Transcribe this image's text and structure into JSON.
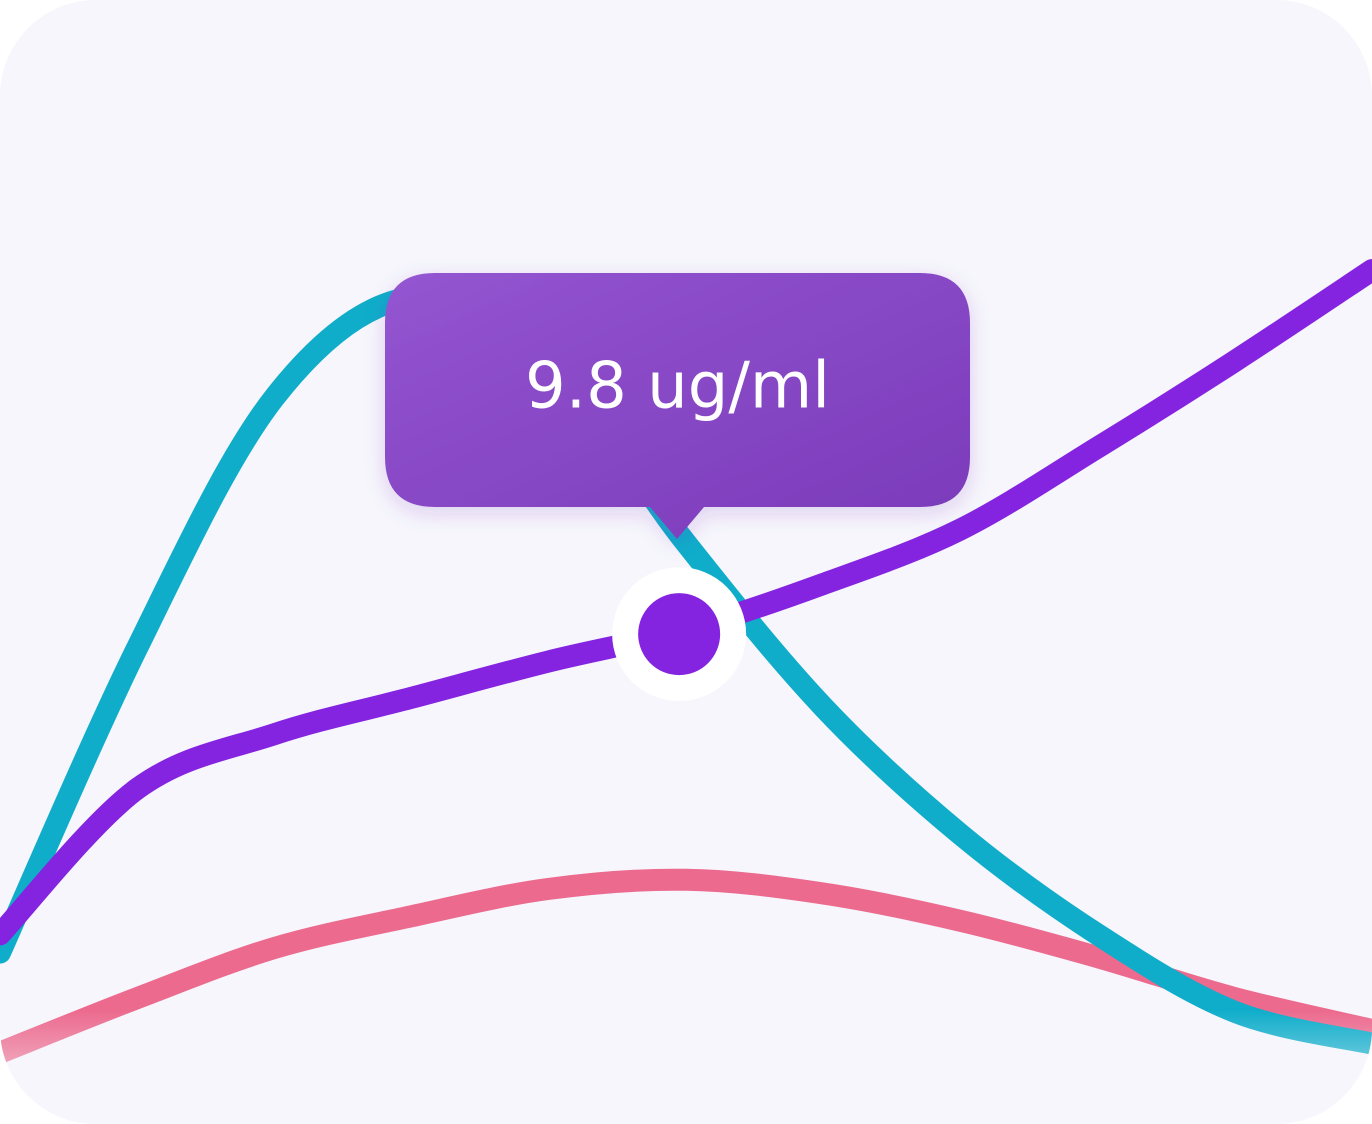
{
  "colors": {
    "background": "#f6f6fc",
    "teal_series": "#0fadca",
    "purple_series": "#8424e0",
    "pink_series": "#ec6a8e",
    "tooltip_start": "#9455d1",
    "tooltip_end": "#7a3ab9",
    "tooltip_text": "#ffffff",
    "marker_ring": "#ffffff"
  },
  "chart_data": {
    "type": "line",
    "grid": false,
    "legend": "none",
    "x": [
      0,
      1,
      2,
      3,
      4,
      5,
      6,
      7,
      8,
      9,
      10
    ],
    "xlim": [
      0,
      10
    ],
    "ylim": [
      0,
      20
    ],
    "series": [
      {
        "color": "#0fadca",
        "values": [
          2.8,
          9.5,
          15.0,
          17.2,
          15.8,
          11.8,
          8.2,
          5.4,
          3.2,
          1.5,
          0.8
        ]
      },
      {
        "color": "#8424e0",
        "values": [
          3.2,
          6.4,
          7.6,
          8.4,
          9.2,
          9.9,
          10.9,
          12.1,
          13.9,
          15.8,
          17.8
        ]
      },
      {
        "color": "#ec6a8e",
        "values": [
          0.6,
          1.8,
          2.9,
          3.6,
          4.2,
          4.4,
          4.1,
          3.5,
          2.7,
          1.8,
          1.1
        ]
      }
    ],
    "highlight": {
      "series_index": 1,
      "x": 4.95,
      "y": 9.8,
      "label": "9.8 ug/ml"
    }
  }
}
